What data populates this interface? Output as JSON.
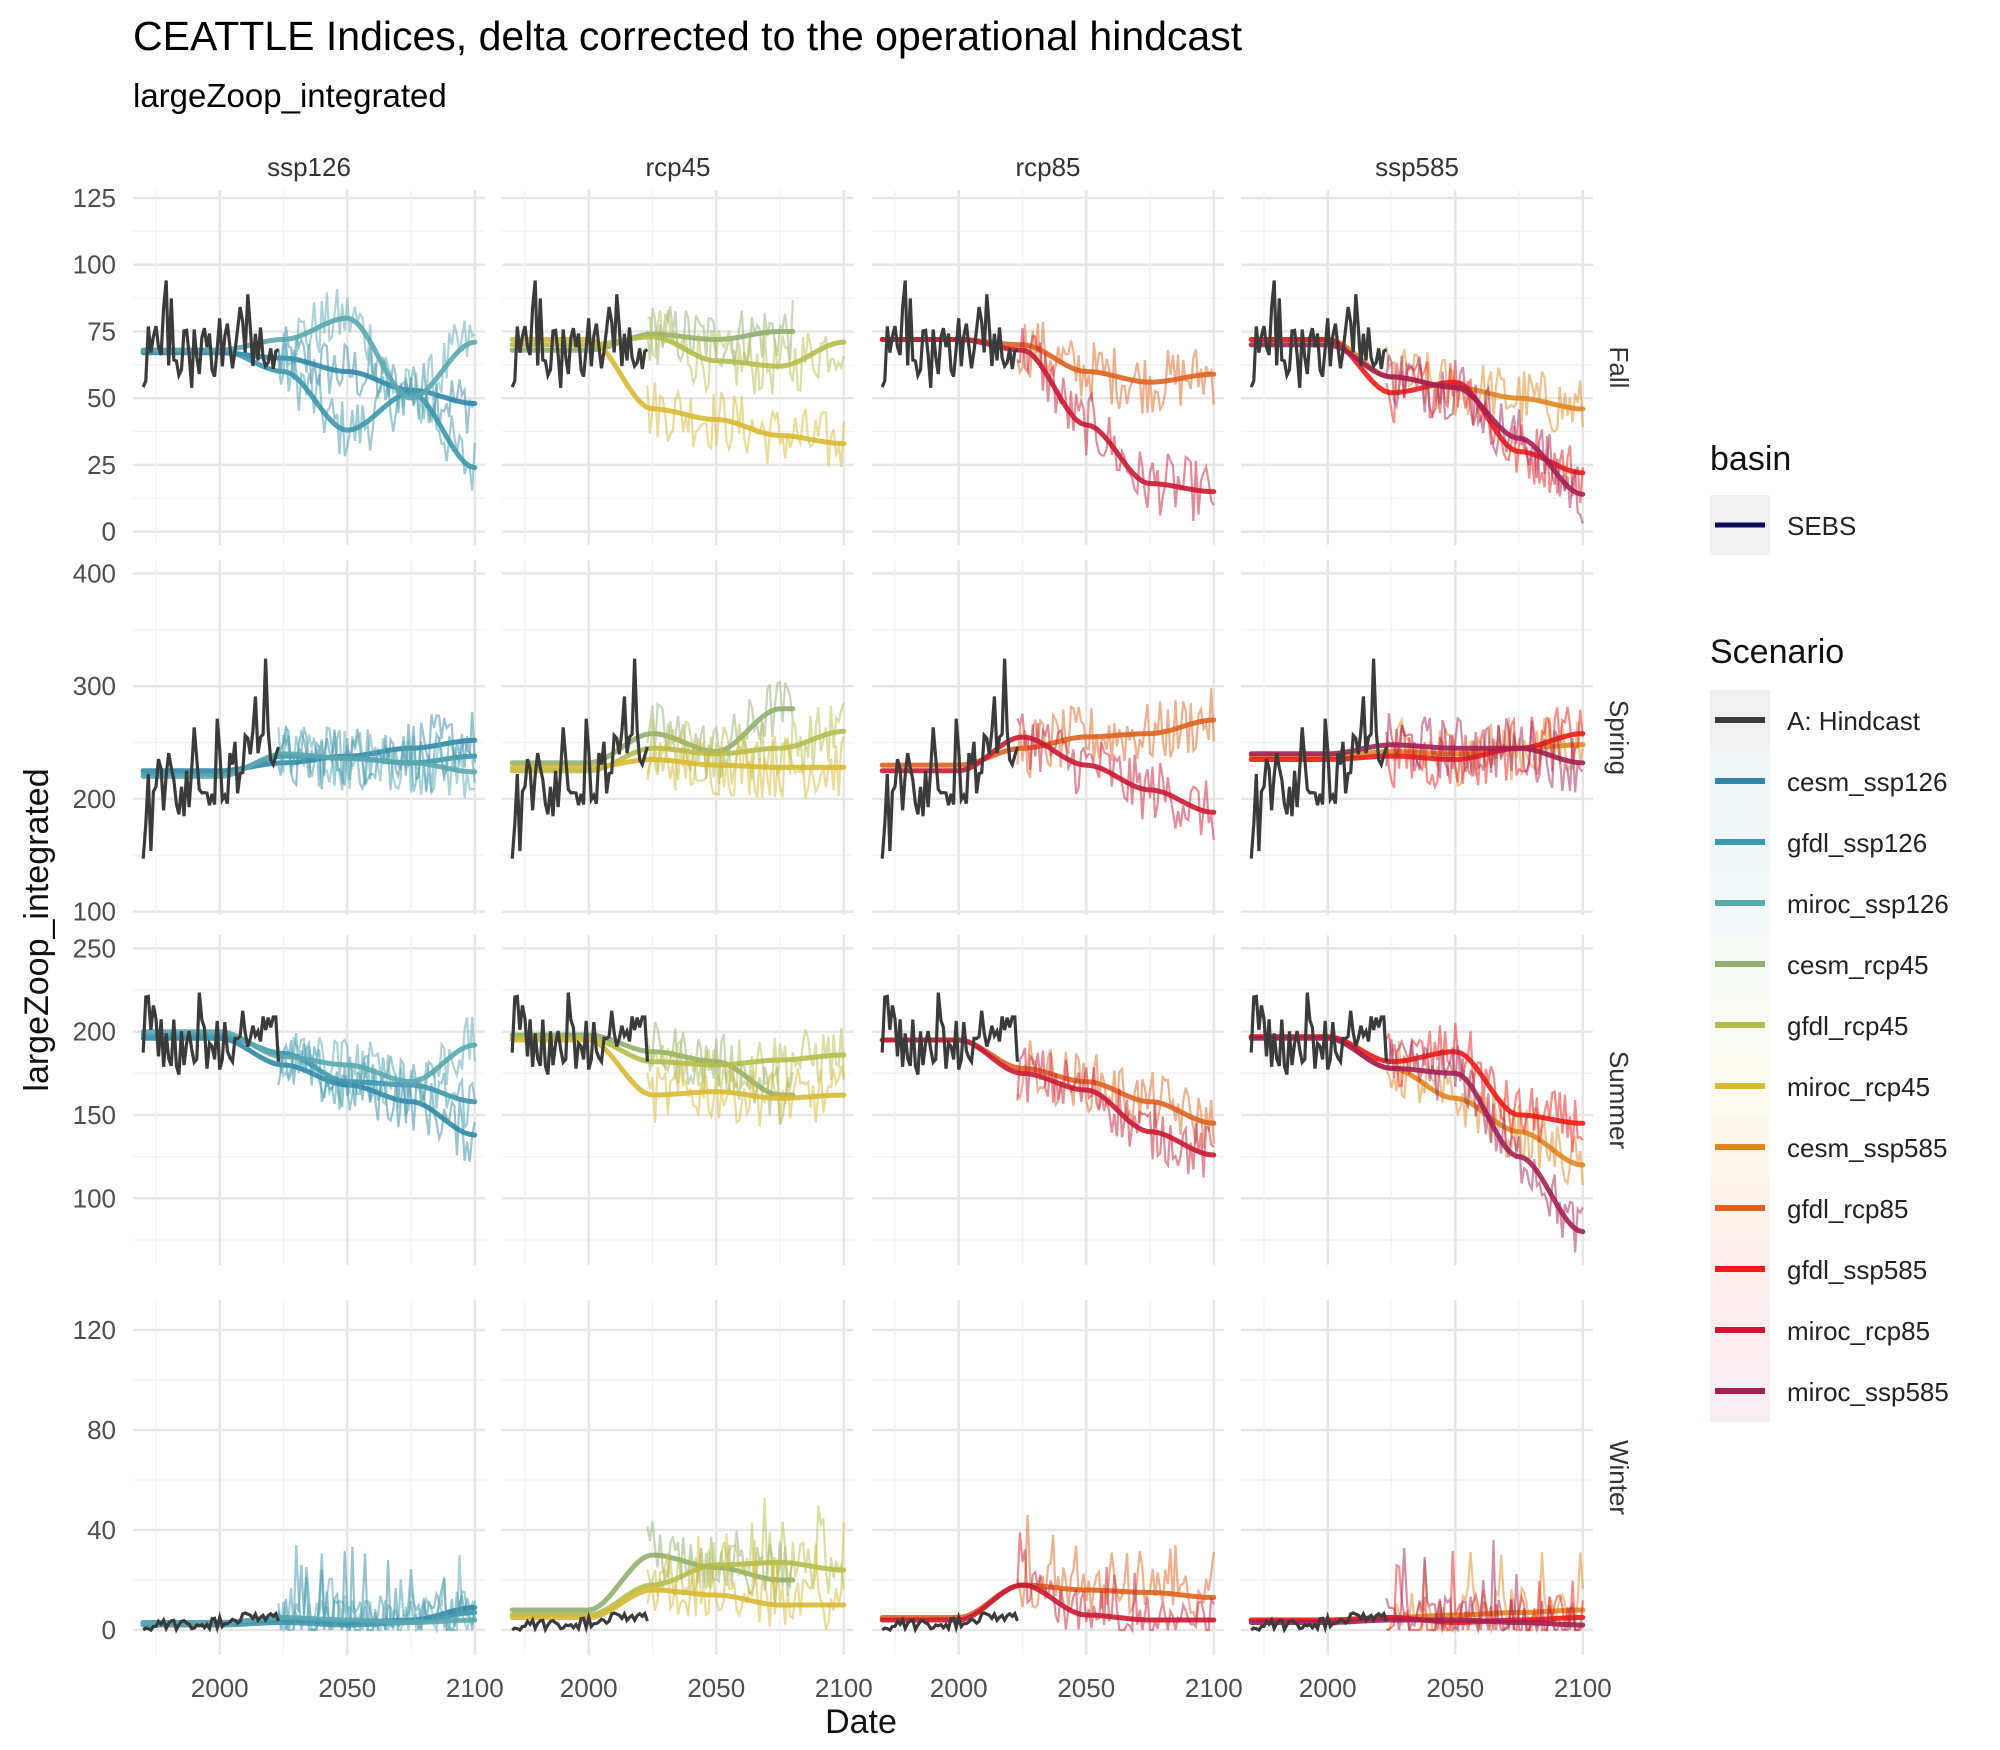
{
  "chart_data": {
    "type": "line",
    "title": "CEATTLE Indices, delta corrected to the operational hindcast",
    "subtitle": "largeZoop_integrated",
    "xlabel": "Date",
    "ylabel": "largeZoop_integrated",
    "xlim": [
      1966,
      2104
    ],
    "x_ticks": [
      "2000",
      "2050",
      "2100"
    ],
    "grid": true,
    "legend_position": "right",
    "columns": [
      "ssp126",
      "rcp45",
      "rcp85",
      "ssp585"
    ],
    "rows": [
      "Fall",
      "Spring",
      "Summer",
      "Winter"
    ],
    "y_axes": {
      "Fall": {
        "ylim": [
          -5,
          128
        ],
        "ticks": [
          "0",
          "25",
          "50",
          "75",
          "100",
          "125"
        ]
      },
      "Spring": {
        "ylim": [
          97,
          412
        ],
        "ticks": [
          "100",
          "200",
          "300",
          "400"
        ]
      },
      "Summer": {
        "ylim": [
          60,
          258
        ],
        "ticks": [
          "100",
          "150",
          "200",
          "250"
        ]
      },
      "Winter": {
        "ylim": [
          -10,
          132
        ],
        "ticks": [
          "0",
          "40",
          "80",
          "120"
        ]
      }
    },
    "column_series": {
      "ssp126": [
        "cesm_ssp126",
        "gfdl_ssp126",
        "miroc_ssp126"
      ],
      "rcp45": [
        "cesm_rcp45",
        "gfdl_rcp45",
        "miroc_rcp45"
      ],
      "rcp85": [
        "gfdl_rcp85",
        "miroc_rcp85"
      ],
      "ssp585": [
        "cesm_ssp585",
        "gfdl_ssp585",
        "miroc_ssp585"
      ]
    },
    "hindcast_years": [
      1970,
      2023
    ],
    "hindcast_smooth": {
      "x": [
        1970,
        1980,
        1990,
        2000,
        2010,
        2020
      ],
      "Fall": [
        66,
        65,
        65,
        70,
        74,
        69
      ],
      "Spring": [
        175,
        205,
        212,
        218,
        235,
        255
      ],
      "Summer": [
        205,
        192,
        190,
        195,
        198,
        192
      ],
      "Winter": [
        1,
        2,
        2,
        3,
        5,
        5
      ]
    },
    "smooth_x": [
      2000,
      2025,
      2050,
      2075,
      2100
    ],
    "projections": [
      {
        "name": "cesm_ssp126",
        "column": "ssp126",
        "start": 2023,
        "end": 2100,
        "Fall": [
          67,
          65,
          60,
          53,
          48
        ],
        "Spring": [
          225,
          232,
          238,
          245,
          252
        ],
        "Summer": [
          196,
          180,
          168,
          158,
          138
        ],
        "Winter": [
          3,
          4,
          3,
          4,
          9
        ]
      },
      {
        "name": "gfdl_ssp126",
        "column": "ssp126",
        "start": 2023,
        "end": 2100,
        "Fall": [
          68,
          60,
          38,
          52,
          24
        ],
        "Spring": [
          222,
          238,
          236,
          232,
          238
        ],
        "Summer": [
          198,
          187,
          170,
          168,
          158
        ],
        "Winter": [
          2,
          3,
          2,
          3,
          7
        ]
      },
      {
        "name": "miroc_ssp126",
        "column": "ssp126",
        "start": 2023,
        "end": 2100,
        "Fall": [
          68,
          72,
          80,
          50,
          71
        ],
        "Spring": [
          220,
          240,
          236,
          232,
          224
        ],
        "Summer": [
          200,
          185,
          180,
          170,
          192
        ],
        "Winter": [
          3,
          5,
          4,
          3,
          4
        ]
      },
      {
        "name": "cesm_rcp45",
        "column": "rcp45",
        "start": 2023,
        "end": 2080,
        "Fall": [
          68,
          74,
          72,
          75,
          75
        ],
        "Spring": [
          232,
          258,
          242,
          280,
          280
        ],
        "Summer": [
          198,
          188,
          182,
          162,
          162
        ],
        "Winter": [
          8,
          30,
          25,
          20,
          20
        ]
      },
      {
        "name": "gfdl_rcp45",
        "column": "rcp45",
        "start": 2023,
        "end": 2100,
        "Fall": [
          70,
          73,
          64,
          62,
          71
        ],
        "Spring": [
          225,
          245,
          240,
          245,
          260
        ],
        "Summer": [
          196,
          182,
          180,
          183,
          186
        ],
        "Winter": [
          6,
          18,
          26,
          27,
          24
        ]
      },
      {
        "name": "miroc_rcp45",
        "column": "rcp45",
        "start": 2023,
        "end": 2100,
        "Fall": [
          72,
          46,
          42,
          36,
          33
        ],
        "Spring": [
          228,
          235,
          230,
          228,
          228
        ],
        "Summer": [
          195,
          162,
          164,
          160,
          162
        ],
        "Winter": [
          5,
          16,
          14,
          10,
          10
        ]
      },
      {
        "name": "gfdl_rcp85",
        "column": "rcp85",
        "start": 2023,
        "end": 2100,
        "Fall": [
          72,
          70,
          60,
          56,
          59
        ],
        "Spring": [
          230,
          245,
          255,
          258,
          270
        ],
        "Summer": [
          195,
          178,
          170,
          158,
          145
        ],
        "Winter": [
          5,
          18,
          16,
          15,
          13
        ]
      },
      {
        "name": "miroc_rcp85",
        "column": "rcp85",
        "start": 2023,
        "end": 2100,
        "Fall": [
          72,
          68,
          40,
          18,
          15
        ],
        "Spring": [
          225,
          255,
          230,
          208,
          188
        ],
        "Summer": [
          195,
          175,
          165,
          140,
          126
        ],
        "Winter": [
          4,
          18,
          6,
          4,
          4
        ]
      },
      {
        "name": "cesm_ssp585",
        "column": "ssp585",
        "start": 2023,
        "end": 2100,
        "Fall": [
          72,
          58,
          54,
          50,
          46
        ],
        "Spring": [
          238,
          242,
          240,
          245,
          248
        ],
        "Summer": [
          197,
          178,
          160,
          140,
          120
        ],
        "Winter": [
          4,
          5,
          6,
          7,
          8
        ]
      },
      {
        "name": "gfdl_ssp585",
        "column": "ssp585",
        "start": 2023,
        "end": 2100,
        "Fall": [
          72,
          52,
          56,
          30,
          22
        ],
        "Spring": [
          235,
          238,
          235,
          245,
          258
        ],
        "Summer": [
          197,
          182,
          188,
          150,
          145
        ],
        "Winter": [
          4,
          5,
          3,
          4,
          5
        ]
      },
      {
        "name": "miroc_ssp585",
        "column": "ssp585",
        "start": 2023,
        "end": 2100,
        "Fall": [
          70,
          58,
          54,
          35,
          14
        ],
        "Spring": [
          240,
          248,
          245,
          245,
          232
        ],
        "Summer": [
          196,
          178,
          175,
          125,
          80
        ],
        "Winter": [
          3,
          4,
          4,
          3,
          2
        ]
      }
    ],
    "legend_basin": {
      "title": "basin",
      "items": [
        "SEBS"
      ],
      "swatch_color": "#0b0b5c"
    },
    "legend_scenario": {
      "title": "Scenario",
      "items": [
        {
          "name": "A: Hindcast",
          "color": "#3b3b3b"
        },
        {
          "name": "cesm_ssp126",
          "color": "#2f88a8"
        },
        {
          "name": "gfdl_ssp126",
          "color": "#3c98ae"
        },
        {
          "name": "miroc_ssp126",
          "color": "#5aa7b0"
        },
        {
          "name": "cesm_rcp45",
          "color": "#8fb06e"
        },
        {
          "name": "gfdl_rcp45",
          "color": "#b5bd4a"
        },
        {
          "name": "miroc_rcp45",
          "color": "#d9b832"
        },
        {
          "name": "cesm_ssp585",
          "color": "#e0861e"
        },
        {
          "name": "gfdl_rcp85",
          "color": "#e0621d"
        },
        {
          "name": "gfdl_ssp585",
          "color": "#ef1a14"
        },
        {
          "name": "miroc_rcp85",
          "color": "#c91932"
        },
        {
          "name": "miroc_ssp585",
          "color": "#a41f54"
        }
      ]
    }
  }
}
